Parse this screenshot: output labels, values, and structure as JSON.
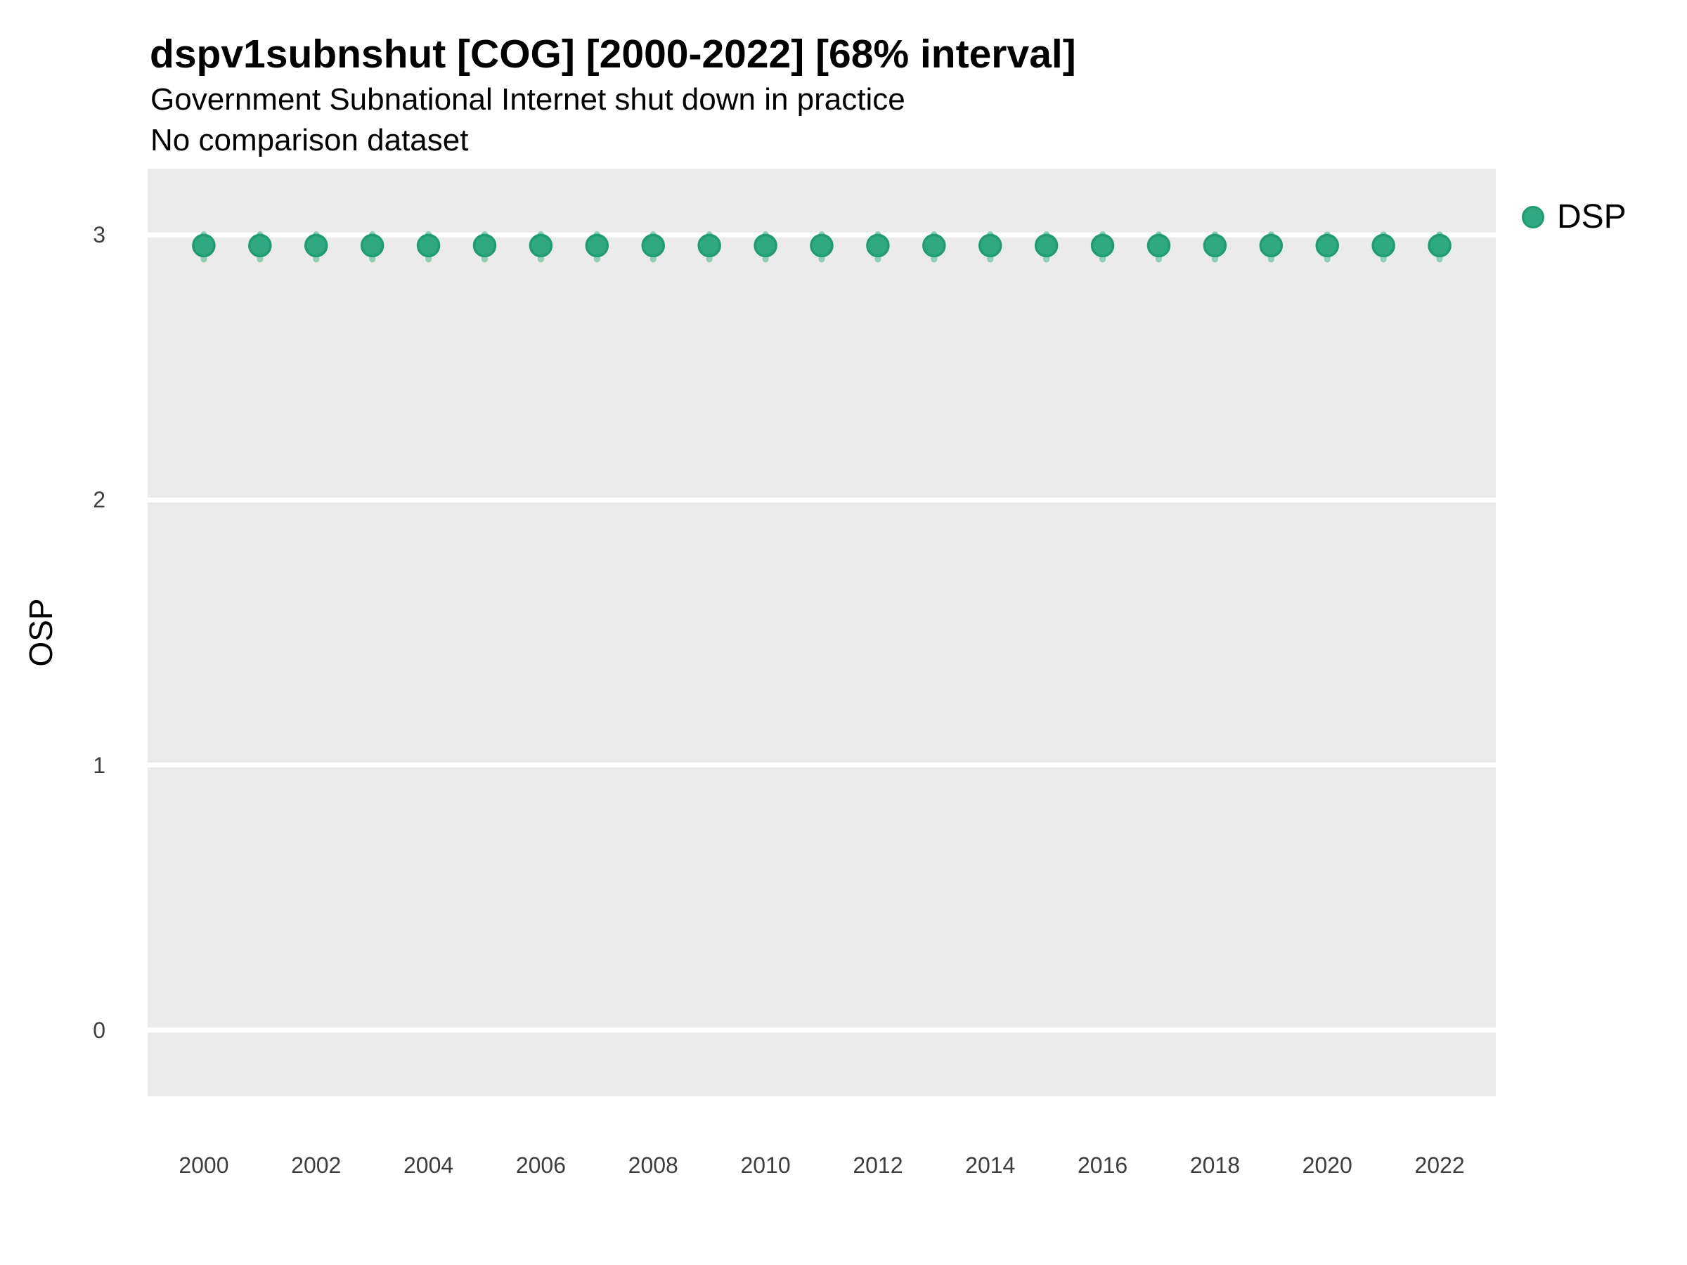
{
  "header": {
    "title": "dspv1subnshut [COG] [2000-2022] [68% interval]",
    "subtitle": "Government Subnational Internet shut down in practice",
    "note": "No comparison dataset"
  },
  "legend": {
    "position": "right-top",
    "items": [
      {
        "label": "DSP",
        "marker": "circle-icon",
        "fill": "#30a982",
        "stroke": "#219c71"
      }
    ]
  },
  "chart_data": {
    "type": "scatter",
    "subtype": "pointrange",
    "title": "dspv1subnshut [COG] [2000-2022] [68% interval]",
    "subtitle": "Government Subnational Internet shut down in practice",
    "note": "No comparison dataset",
    "interval_level": "68%",
    "xlabel": "",
    "ylabel": "OSP",
    "xlim": [
      1999,
      2023
    ],
    "ylim": [
      -0.25,
      3.25
    ],
    "xticks": [
      2000,
      2002,
      2004,
      2006,
      2008,
      2010,
      2012,
      2014,
      2016,
      2018,
      2020,
      2022
    ],
    "yticks": [
      0,
      1,
      2,
      3
    ],
    "grid": "horizontal-major-only",
    "panel_bg": "#ebebeb",
    "grid_color": "#ffffff",
    "legend_position": "right",
    "series": [
      {
        "name": "DSP",
        "color": "#30a982",
        "stroke": "#219c71",
        "interval_color": "#8ed1b2",
        "x": [
          2000,
          2001,
          2002,
          2003,
          2004,
          2005,
          2006,
          2007,
          2008,
          2009,
          2010,
          2011,
          2012,
          2013,
          2014,
          2015,
          2016,
          2017,
          2018,
          2019,
          2020,
          2021,
          2022
        ],
        "y": [
          2.96,
          2.96,
          2.96,
          2.96,
          2.96,
          2.96,
          2.96,
          2.96,
          2.96,
          2.96,
          2.96,
          2.96,
          2.96,
          2.96,
          2.96,
          2.96,
          2.96,
          2.96,
          2.96,
          2.96,
          2.96,
          2.96,
          2.96
        ],
        "interval_low": [
          2.9,
          2.9,
          2.9,
          2.9,
          2.9,
          2.9,
          2.9,
          2.9,
          2.9,
          2.9,
          2.9,
          2.9,
          2.9,
          2.9,
          2.9,
          2.9,
          2.9,
          2.9,
          2.9,
          2.9,
          2.9,
          2.9,
          2.9
        ],
        "interval_high": [
          3.01,
          3.01,
          3.01,
          3.01,
          3.01,
          3.01,
          3.01,
          3.01,
          3.01,
          3.01,
          3.01,
          3.01,
          3.01,
          3.01,
          3.01,
          3.01,
          3.01,
          3.01,
          3.01,
          3.01,
          3.01,
          3.01,
          3.01
        ]
      }
    ]
  },
  "style": {
    "point_radius": 15,
    "point_stroke_width": 3.5,
    "interval_width": 9,
    "gridline_thickness": 7,
    "tick_text_color": "#3d3d3d",
    "text_color": "#000000"
  }
}
